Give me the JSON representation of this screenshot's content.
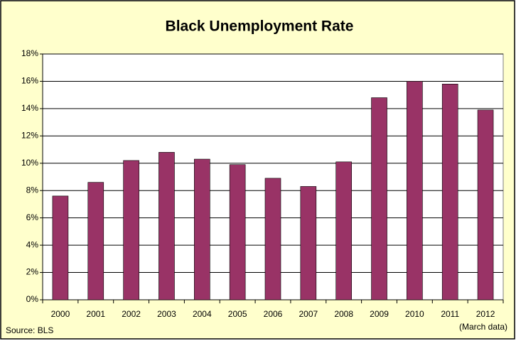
{
  "chart_data": {
    "type": "bar",
    "title": "Black Unemployment Rate",
    "categories": [
      "2000",
      "2001",
      "2002",
      "2003",
      "2004",
      "2005",
      "2006",
      "2007",
      "2008",
      "2009",
      "2010",
      "2011",
      "2012"
    ],
    "values": [
      7.6,
      8.6,
      10.2,
      10.8,
      10.3,
      9.9,
      8.9,
      8.3,
      10.1,
      14.8,
      16.0,
      15.8,
      13.9
    ],
    "color": "#993366",
    "ylim": [
      0,
      18
    ],
    "yticks": [
      {
        "value": 0,
        "label": "0%"
      },
      {
        "value": 2,
        "label": "2%"
      },
      {
        "value": 4,
        "label": "4%"
      },
      {
        "value": 6,
        "label": "6%"
      },
      {
        "value": 8,
        "label": "8%"
      },
      {
        "value": 10,
        "label": "10%"
      },
      {
        "value": 12,
        "label": "12%"
      },
      {
        "value": 14,
        "label": "14%"
      },
      {
        "value": 16,
        "label": "16%"
      },
      {
        "value": 18,
        "label": "18%"
      }
    ],
    "grid": true,
    "source": "Source: BLS",
    "note": "(March data)"
  }
}
